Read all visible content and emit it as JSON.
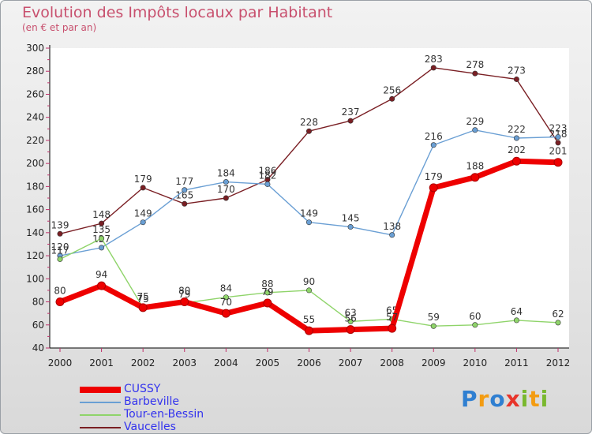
{
  "header": {
    "title": "Evolution des Impôts locaux par Habitant",
    "subtitle": "(en € et par an)"
  },
  "logo": {
    "letters": [
      {
        "ch": "P",
        "color": "#2f7fd1"
      },
      {
        "ch": "r",
        "color": "#f39c12"
      },
      {
        "ch": "o",
        "color": "#2f7fd1"
      },
      {
        "ch": "x",
        "color": "#e8352b"
      },
      {
        "ch": "i",
        "color": "#79b82e"
      },
      {
        "ch": "t",
        "color": "#f39c12"
      },
      {
        "ch": "i",
        "color": "#79b82e"
      }
    ]
  },
  "chart_data": {
    "type": "line",
    "title": "Evolution des Impôts locaux par Habitant",
    "subtitle": "(en € et par an)",
    "xlabel": "",
    "ylabel": "",
    "x": [
      "2000",
      "2001",
      "2002",
      "2003",
      "2004",
      "2005",
      "2006",
      "2007",
      "2008",
      "2009",
      "2010",
      "2011",
      "2012"
    ],
    "ylim": [
      40,
      300
    ],
    "yticks": [
      40,
      60,
      80,
      100,
      120,
      140,
      160,
      180,
      200,
      220,
      240,
      260,
      280,
      300
    ],
    "grid": false,
    "legend_position": "bottom-left",
    "series": [
      {
        "name": "CUSSY",
        "color": "#ee0000",
        "values": [
          80,
          94,
          75,
          80,
          70,
          79,
          55,
          56,
          57,
          179,
          188,
          202,
          201
        ]
      },
      {
        "name": "Barbeville",
        "color": "#6a9fd4",
        "values": [
          120,
          127,
          149,
          177,
          184,
          182,
          149,
          145,
          138,
          216,
          229,
          222,
          223
        ]
      },
      {
        "name": "Tour-en-Bessin",
        "color": "#8fd46a",
        "values": [
          117,
          135,
          75,
          79,
          84,
          88,
          90,
          63,
          65,
          59,
          60,
          64,
          62
        ]
      },
      {
        "name": "Vaucelles",
        "color": "#7a1f24",
        "values": [
          139,
          148,
          179,
          165,
          170,
          186,
          228,
          237,
          256,
          283,
          278,
          273,
          218
        ]
      }
    ]
  }
}
